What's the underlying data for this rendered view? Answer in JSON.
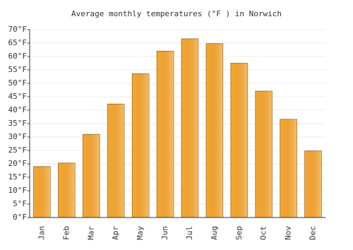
{
  "chart_data": {
    "type": "bar",
    "title": "Average monthly temperatures (°F ) in Norwich",
    "categories": [
      "Jan",
      "Feb",
      "Mar",
      "Apr",
      "May",
      "Jun",
      "Jul",
      "Aug",
      "Sep",
      "Oct",
      "Nov",
      "Dec"
    ],
    "values": [
      19,
      20.3,
      31,
      42.3,
      53.6,
      62,
      66.6,
      64.8,
      57.5,
      47.1,
      36.6,
      24.8
    ],
    "color": "#fba92f",
    "ylim": [
      0,
      70
    ],
    "yticks": [
      {
        "value": 0,
        "label": "0°F"
      },
      {
        "value": 5,
        "label": "5°F"
      },
      {
        "value": 10,
        "label": "10°F"
      },
      {
        "value": 15,
        "label": "15°F"
      },
      {
        "value": 20,
        "label": "20°F"
      },
      {
        "value": 25,
        "label": "25°F"
      },
      {
        "value": 30,
        "label": "30°F"
      },
      {
        "value": 35,
        "label": "35°F"
      },
      {
        "value": 40,
        "label": "40°F"
      },
      {
        "value": 45,
        "label": "45°F"
      },
      {
        "value": 50,
        "label": "50°F"
      },
      {
        "value": 55,
        "label": "55°F"
      },
      {
        "value": 60,
        "label": "60°F"
      },
      {
        "value": 65,
        "label": "65°F"
      },
      {
        "value": 70,
        "label": "70°F"
      }
    ],
    "grid": true
  }
}
